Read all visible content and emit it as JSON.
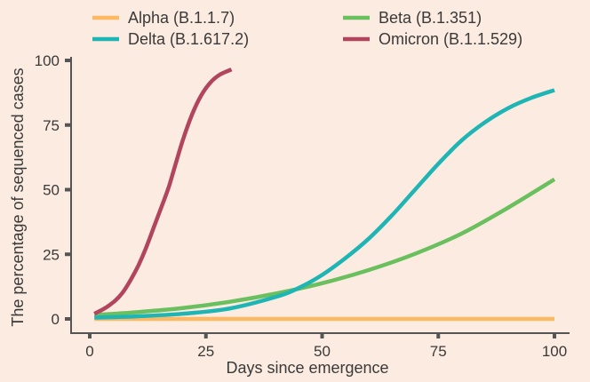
{
  "chart_data": {
    "type": "line",
    "title": "",
    "xlabel": "Days since emergence",
    "ylabel": "The percentage of sequenced cases",
    "xlim": [
      0,
      100
    ],
    "ylim": [
      0,
      100
    ],
    "x_ticks": [
      0,
      25,
      50,
      75,
      100
    ],
    "y_ticks": [
      0,
      25,
      50,
      75,
      100
    ],
    "grid": false,
    "legend_position": "top",
    "series": [
      {
        "name": "Alpha (B.1.1.7)",
        "color": "#fdb863",
        "x": [
          1,
          100
        ],
        "y": [
          0,
          0
        ]
      },
      {
        "name": "Beta (B.1.351)",
        "color": "#6abf5e",
        "x": [
          1,
          10,
          20,
          30,
          40,
          50,
          60,
          70,
          80,
          90,
          100
        ],
        "y": [
          1.5,
          2.6,
          4.2,
          6.6,
          9.8,
          13.8,
          18.9,
          25.2,
          33,
          43,
          54
        ]
      },
      {
        "name": "Delta (B.1.617.2)",
        "color": "#1fb5b5",
        "x": [
          1,
          10,
          20,
          30,
          40,
          45,
          50,
          55,
          60,
          65,
          70,
          75,
          80,
          85,
          90,
          95,
          100
        ],
        "y": [
          0.5,
          1,
          2,
          4,
          8.5,
          12,
          17,
          23.5,
          31,
          40,
          50,
          60,
          69,
          76,
          81.5,
          85.5,
          88.5
        ]
      },
      {
        "name": "Omicron (B.1.1.529)",
        "color": "#b2455e",
        "x": [
          1,
          4,
          7,
          10,
          12,
          14,
          16,
          17,
          18,
          20,
          22,
          24,
          26,
          28,
          30.5
        ],
        "y": [
          2,
          5,
          10,
          19,
          27,
          36.5,
          46,
          51,
          57,
          69,
          79,
          86.5,
          91.5,
          94.5,
          96.5
        ]
      }
    ]
  }
}
